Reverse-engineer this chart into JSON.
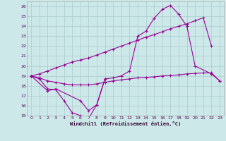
{
  "xlabel": "Windchill (Refroidissement éolien,°C)",
  "bg_color": "#cce8e8",
  "grid_color": "#aacccc",
  "line_color": "#990099",
  "x": [
    0,
    1,
    2,
    3,
    4,
    5,
    6,
    7,
    8,
    9,
    10,
    11,
    12,
    13,
    14,
    15,
    16,
    17,
    18,
    19,
    20,
    21,
    22,
    23
  ],
  "series1": [
    19.0,
    18.7,
    17.7,
    17.6,
    16.5,
    15.3,
    15.0,
    14.7,
    16.1,
    18.7,
    null,
    null,
    null,
    null,
    null,
    null,
    null,
    null,
    null,
    null,
    null,
    null,
    null,
    null
  ],
  "series2": [
    19.0,
    18.8,
    18.5,
    18.35,
    18.2,
    18.1,
    18.1,
    18.1,
    18.2,
    18.35,
    18.5,
    18.6,
    18.7,
    18.8,
    18.85,
    18.9,
    19.0,
    19.05,
    19.1,
    19.2,
    19.25,
    19.3,
    19.3,
    18.5
  ],
  "series3": [
    19.0,
    19.2,
    19.5,
    19.8,
    20.1,
    20.4,
    20.6,
    20.8,
    21.1,
    21.4,
    21.7,
    22.0,
    22.3,
    22.6,
    22.9,
    23.15,
    23.45,
    23.75,
    24.0,
    24.25,
    24.55,
    24.85,
    22.0,
    null
  ],
  "series4": [
    19.0,
    null,
    17.5,
    17.7,
    null,
    null,
    16.5,
    15.5,
    16.1,
    18.7,
    18.8,
    19.0,
    19.5,
    23.0,
    23.5,
    24.8,
    25.7,
    26.1,
    25.2,
    24.0,
    20.0,
    null,
    19.2,
    18.5
  ],
  "ylim": [
    15,
    26.5
  ],
  "xlim": [
    -0.5,
    23.5
  ],
  "yticks": [
    15,
    16,
    17,
    18,
    19,
    20,
    21,
    22,
    23,
    24,
    25,
    26
  ],
  "xticks": [
    0,
    1,
    2,
    3,
    4,
    5,
    6,
    7,
    8,
    9,
    10,
    11,
    12,
    13,
    14,
    15,
    16,
    17,
    18,
    19,
    20,
    21,
    22,
    23
  ]
}
